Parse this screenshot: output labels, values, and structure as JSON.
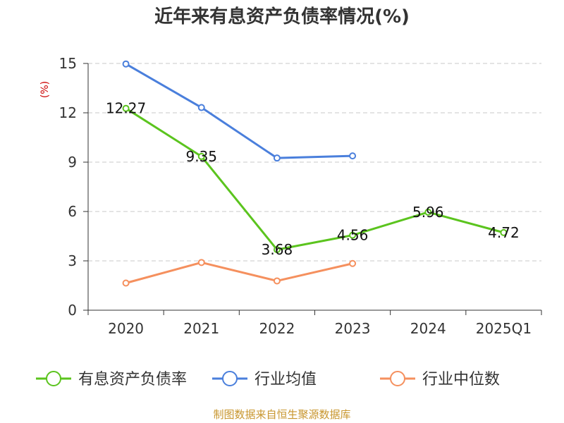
{
  "chart_data": {
    "type": "line",
    "title": "近年来有息资产负债率情况(%)",
    "ylabel": "(%)",
    "categories": [
      "2020",
      "2021",
      "2022",
      "2023",
      "2024",
      "2025Q1"
    ],
    "ylim": [
      0,
      15
    ],
    "yticks": [
      "0",
      "3",
      "6",
      "9",
      "12",
      "15"
    ],
    "grid": true,
    "legend_position": "bottom",
    "series": [
      {
        "name": "有息资产负债率",
        "color": "#5bc41e",
        "values": [
          12.27,
          9.35,
          3.68,
          4.56,
          5.96,
          4.72
        ],
        "labels": [
          "12.27",
          "9.35",
          "3.68",
          "4.56",
          "5.96",
          "4.72"
        ]
      },
      {
        "name": "行业均值",
        "color": "#4a7fdc",
        "values": [
          14.97,
          12.32,
          9.25,
          9.38,
          null,
          null
        ]
      },
      {
        "name": "行业中位数",
        "color": "#f5905e",
        "values": [
          1.65,
          2.9,
          1.78,
          2.84,
          null,
          null
        ]
      }
    ]
  },
  "source": "制图数据来自恒生聚源数据库"
}
